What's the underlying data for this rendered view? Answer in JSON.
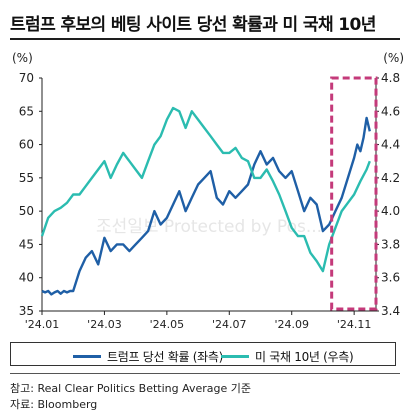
{
  "title": "트럼프 후보의 베팅 사이트 당선 확률과 미 국채 10년",
  "colors": {
    "trump": "#1f5fa6",
    "treasury": "#2bbcb0",
    "highlight": "#c43a7a"
  },
  "chart_data": {
    "type": "line",
    "x_tick_labels": [
      "'24.01",
      "'24.03",
      "'24.05",
      "'24.07",
      "'24.09",
      "'24.11"
    ],
    "x_range": [
      0,
      10.7
    ],
    "left_axis": {
      "unit_label": "(%)",
      "ylim": [
        35,
        70
      ],
      "ticks": [
        35,
        40,
        45,
        50,
        55,
        60,
        65,
        70
      ]
    },
    "right_axis": {
      "unit_label": "(%)",
      "ylim": [
        3.4,
        4.8
      ],
      "ticks": [
        3.4,
        3.6,
        3.8,
        4.0,
        4.2,
        4.4,
        4.6,
        4.8
      ]
    },
    "series": [
      {
        "name": "트럼프 당선 확률 (좌측)",
        "axis": "left",
        "color": "#1f5fa6",
        "x": [
          0,
          0.1,
          0.2,
          0.3,
          0.4,
          0.5,
          0.6,
          0.7,
          0.8,
          0.9,
          1.0,
          1.2,
          1.4,
          1.6,
          1.8,
          2.0,
          2.2,
          2.4,
          2.6,
          2.8,
          3.0,
          3.2,
          3.4,
          3.6,
          3.8,
          4.0,
          4.2,
          4.4,
          4.6,
          4.8,
          5.0,
          5.2,
          5.4,
          5.6,
          5.8,
          6.0,
          6.2,
          6.4,
          6.6,
          6.8,
          7.0,
          7.2,
          7.4,
          7.6,
          7.8,
          8.0,
          8.2,
          8.4,
          8.6,
          8.8,
          9.0,
          9.2,
          9.4,
          9.6,
          9.8,
          10.0,
          10.1,
          10.2,
          10.3,
          10.4,
          10.5
        ],
        "values": [
          38,
          37.8,
          38,
          37.5,
          37.8,
          38,
          37.6,
          38,
          37.8,
          38,
          38,
          41,
          43,
          44,
          42,
          46,
          44,
          45,
          45,
          44,
          45,
          46,
          47,
          50,
          48,
          49,
          51,
          53,
          50,
          52,
          54,
          55,
          56,
          52,
          51,
          53,
          52,
          53,
          54,
          57,
          59,
          57,
          58,
          56,
          55,
          56,
          53,
          50,
          52,
          51,
          47,
          48,
          50,
          52,
          55,
          58,
          60,
          59,
          61,
          64,
          62
        ]
      },
      {
        "name": "미 국채 10년 (우측)",
        "axis": "right",
        "color": "#2bbcb0",
        "x": [
          0,
          0.2,
          0.4,
          0.6,
          0.8,
          1.0,
          1.2,
          1.4,
          1.6,
          1.8,
          2.0,
          2.2,
          2.4,
          2.6,
          2.8,
          3.0,
          3.2,
          3.4,
          3.6,
          3.8,
          4.0,
          4.2,
          4.4,
          4.6,
          4.8,
          5.0,
          5.2,
          5.4,
          5.6,
          5.8,
          6.0,
          6.2,
          6.4,
          6.6,
          6.8,
          7.0,
          7.2,
          7.4,
          7.6,
          7.8,
          8.0,
          8.2,
          8.4,
          8.6,
          8.8,
          9.0,
          9.2,
          9.4,
          9.6,
          9.8,
          10.0,
          10.2,
          10.4,
          10.5
        ],
        "values": [
          3.85,
          3.96,
          4.0,
          4.02,
          4.05,
          4.1,
          4.1,
          4.15,
          4.2,
          4.25,
          4.3,
          4.2,
          4.28,
          4.35,
          4.3,
          4.25,
          4.2,
          4.3,
          4.4,
          4.45,
          4.55,
          4.62,
          4.6,
          4.5,
          4.6,
          4.55,
          4.5,
          4.45,
          4.4,
          4.35,
          4.35,
          4.38,
          4.32,
          4.3,
          4.2,
          4.2,
          4.25,
          4.18,
          4.1,
          4.0,
          3.9,
          3.85,
          3.85,
          3.75,
          3.7,
          3.64,
          3.8,
          3.9,
          4.0,
          4.05,
          4.1,
          4.18,
          4.25,
          4.3
        ]
      }
    ],
    "highlight_region": {
      "x_start": 9.28,
      "x_end": 10.7,
      "y_top": 4.8,
      "y_bottom": 3.4
    },
    "watermark": "조선일보 Protected by Pos..."
  },
  "legend": {
    "trump": "트럼프 당선 확률 (좌측)",
    "treasury": "미 국채 10년 (우측)"
  },
  "source": {
    "reference": "참고: Real Clear Politics Betting Average 기준",
    "origin": "자료: Bloomberg"
  }
}
